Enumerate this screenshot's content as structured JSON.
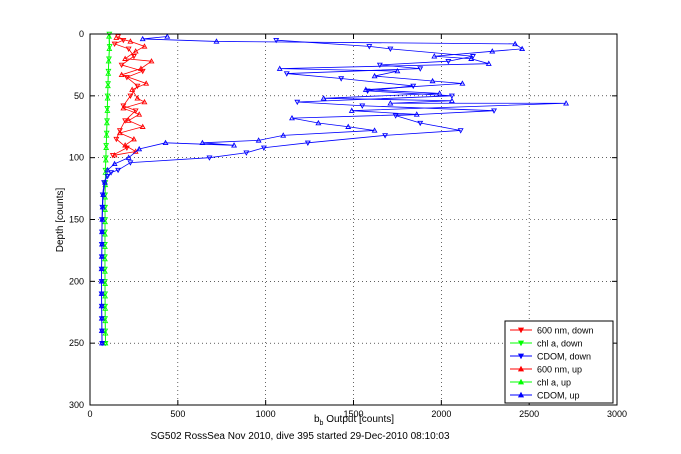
{
  "caption": "SG502 RossSea Nov 2010, dive 395 started 29-Dec-2010 08:10:03",
  "chart_data": {
    "type": "scatter",
    "title": "",
    "xlabel_main": "b",
    "xlabel_sub": "b",
    "xlabel_rest": " Output [counts]",
    "ylabel": "Depth [counts]",
    "xlim": [
      0,
      3000
    ],
    "ylim": [
      0,
      300
    ],
    "y_reversed": true,
    "grid": true,
    "grid_style": "dotted",
    "legend_position": "bottom-right",
    "x_ticks": [
      0,
      500,
      1000,
      1500,
      2000,
      2500,
      3000
    ],
    "y_ticks": [
      0,
      50,
      100,
      150,
      200,
      250,
      300
    ],
    "series": [
      {
        "name": "600 nm, down",
        "color": "#ff0000",
        "marker": "triangle-down",
        "points": [
          [
            160,
            2
          ],
          [
            190,
            5
          ],
          [
            140,
            8
          ],
          [
            220,
            12
          ],
          [
            250,
            18
          ],
          [
            180,
            25
          ],
          [
            300,
            30
          ],
          [
            210,
            35
          ],
          [
            270,
            42
          ],
          [
            230,
            50
          ],
          [
            190,
            58
          ],
          [
            260,
            62
          ],
          [
            200,
            70
          ],
          [
            170,
            78
          ],
          [
            150,
            85
          ],
          [
            210,
            92
          ],
          [
            130,
            98
          ]
        ]
      },
      {
        "name": "chl a, down",
        "color": "#00ff00",
        "marker": "triangle-down",
        "points": [
          [
            110,
            0
          ],
          [
            112,
            10
          ],
          [
            108,
            20
          ],
          [
            105,
            30
          ],
          [
            103,
            40
          ],
          [
            100,
            50
          ],
          [
            98,
            60
          ],
          [
            97,
            70
          ],
          [
            95,
            80
          ],
          [
            92,
            90
          ],
          [
            90,
            100
          ],
          [
            88,
            110
          ],
          [
            87,
            120
          ],
          [
            86,
            130
          ],
          [
            86,
            140
          ],
          [
            86,
            150
          ],
          [
            85,
            160
          ],
          [
            85,
            170
          ],
          [
            85,
            180
          ],
          [
            85,
            190
          ],
          [
            85,
            200
          ],
          [
            86,
            210
          ],
          [
            86,
            220
          ],
          [
            86,
            230
          ],
          [
            87,
            240
          ],
          [
            88,
            250
          ]
        ]
      },
      {
        "name": "CDOM, down",
        "color": "#0000ff",
        "marker": "triangle-down",
        "points": [
          [
            1060,
            5
          ],
          [
            1590,
            10
          ],
          [
            1710,
            12
          ],
          [
            2180,
            18
          ],
          [
            2040,
            22
          ],
          [
            1650,
            25
          ],
          [
            1880,
            28
          ],
          [
            1120,
            32
          ],
          [
            1430,
            36
          ],
          [
            1840,
            42
          ],
          [
            1580,
            46
          ],
          [
            2060,
            50
          ],
          [
            1180,
            55
          ],
          [
            1550,
            58
          ],
          [
            2300,
            62
          ],
          [
            1740,
            66
          ],
          [
            1880,
            72
          ],
          [
            2110,
            78
          ],
          [
            1680,
            82
          ],
          [
            1240,
            88
          ],
          [
            990,
            92
          ],
          [
            890,
            96
          ],
          [
            680,
            100
          ],
          [
            230,
            104
          ],
          [
            160,
            110
          ],
          [
            120,
            112
          ],
          [
            100,
            115
          ],
          [
            80,
            120
          ],
          [
            72,
            130
          ],
          [
            70,
            140
          ],
          [
            68,
            150
          ],
          [
            68,
            160
          ],
          [
            67,
            170
          ],
          [
            67,
            180
          ],
          [
            66,
            190
          ],
          [
            66,
            200
          ],
          [
            66,
            210
          ],
          [
            67,
            220
          ],
          [
            67,
            230
          ],
          [
            68,
            240
          ],
          [
            69,
            250
          ]
        ]
      },
      {
        "name": "600 nm, up",
        "color": "#ff0000",
        "marker": "triangle-up",
        "points": [
          [
            150,
            3
          ],
          [
            230,
            6
          ],
          [
            310,
            10
          ],
          [
            260,
            14
          ],
          [
            200,
            20
          ],
          [
            350,
            22
          ],
          [
            290,
            28
          ],
          [
            180,
            33
          ],
          [
            320,
            40
          ],
          [
            240,
            45
          ],
          [
            270,
            52
          ],
          [
            310,
            55
          ],
          [
            190,
            60
          ],
          [
            280,
            65
          ],
          [
            220,
            70
          ],
          [
            300,
            75
          ],
          [
            170,
            80
          ],
          [
            250,
            85
          ],
          [
            200,
            90
          ],
          [
            260,
            95
          ],
          [
            140,
            98
          ]
        ]
      },
      {
        "name": "chl a, up",
        "color": "#00ff00",
        "marker": "triangle-up",
        "points": [
          [
            108,
            2
          ],
          [
            110,
            12
          ],
          [
            106,
            22
          ],
          [
            104,
            32
          ],
          [
            102,
            42
          ],
          [
            100,
            52
          ],
          [
            99,
            62
          ],
          [
            96,
            72
          ],
          [
            94,
            82
          ],
          [
            92,
            92
          ],
          [
            90,
            102
          ],
          [
            88,
            112
          ],
          [
            87,
            122
          ],
          [
            86,
            132
          ],
          [
            86,
            142
          ],
          [
            86,
            152
          ],
          [
            85,
            162
          ],
          [
            85,
            172
          ],
          [
            85,
            182
          ],
          [
            85,
            192
          ],
          [
            86,
            202
          ],
          [
            86,
            212
          ],
          [
            87,
            222
          ],
          [
            87,
            232
          ],
          [
            88,
            242
          ],
          [
            88,
            250
          ]
        ]
      },
      {
        "name": "CDOM, up",
        "color": "#0000ff",
        "marker": "triangle-up",
        "points": [
          [
            440,
            2
          ],
          [
            300,
            4
          ],
          [
            720,
            6
          ],
          [
            2420,
            8
          ],
          [
            2460,
            12
          ],
          [
            2290,
            14
          ],
          [
            1960,
            18
          ],
          [
            2170,
            20
          ],
          [
            2270,
            24
          ],
          [
            1080,
            28
          ],
          [
            1750,
            30
          ],
          [
            1620,
            34
          ],
          [
            1950,
            38
          ],
          [
            2120,
            40
          ],
          [
            1570,
            45
          ],
          [
            1990,
            48
          ],
          [
            1330,
            52
          ],
          [
            2060,
            54
          ],
          [
            1710,
            56
          ],
          [
            2710,
            56
          ],
          [
            1490,
            62
          ],
          [
            1860,
            65
          ],
          [
            1150,
            68
          ],
          [
            1300,
            72
          ],
          [
            1470,
            75
          ],
          [
            1620,
            78
          ],
          [
            1100,
            82
          ],
          [
            960,
            86
          ],
          [
            640,
            88
          ],
          [
            820,
            90
          ],
          [
            430,
            88
          ],
          [
            280,
            93
          ],
          [
            220,
            100
          ],
          [
            140,
            105
          ],
          [
            100,
            110
          ],
          [
            85,
            120
          ],
          [
            75,
            130
          ],
          [
            72,
            140
          ],
          [
            70,
            150
          ],
          [
            68,
            160
          ],
          [
            68,
            170
          ],
          [
            67,
            180
          ],
          [
            66,
            190
          ],
          [
            66,
            200
          ],
          [
            66,
            210
          ],
          [
            66,
            220
          ],
          [
            67,
            230
          ],
          [
            67,
            240
          ],
          [
            68,
            250
          ]
        ]
      }
    ]
  }
}
